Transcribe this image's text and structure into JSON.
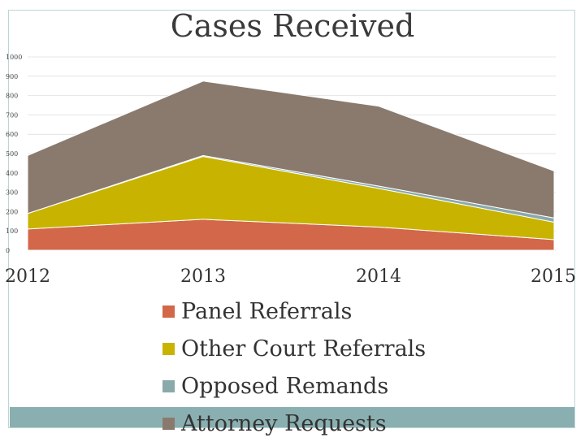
{
  "chart_data": {
    "type": "area",
    "stacked": true,
    "title": "Cases Received",
    "xlabel": "",
    "ylabel": "",
    "categories": [
      "2012",
      "2013",
      "2014",
      "2015"
    ],
    "ylim": [
      0,
      1000
    ],
    "yticks": [
      "0",
      "100",
      "200",
      "300",
      "400",
      "500",
      "600",
      "700",
      "800",
      "900",
      "1000"
    ],
    "grid": true,
    "legend_position": "bottom",
    "series": [
      {
        "name": "Panel Referrals",
        "color": "#d2674a",
        "values": [
          110,
          160,
          120,
          55
        ]
      },
      {
        "name": "Other Court Referrals",
        "color": "#c8b400",
        "values": [
          80,
          325,
          200,
          90
        ]
      },
      {
        "name": "Opposed Remands",
        "color": "#8aa9ab",
        "values": [
          0,
          5,
          12,
          22
        ]
      },
      {
        "name": "Attorney Requests",
        "color": "#8a7a6e",
        "values": [
          300,
          385,
          413,
          243
        ]
      }
    ]
  }
}
